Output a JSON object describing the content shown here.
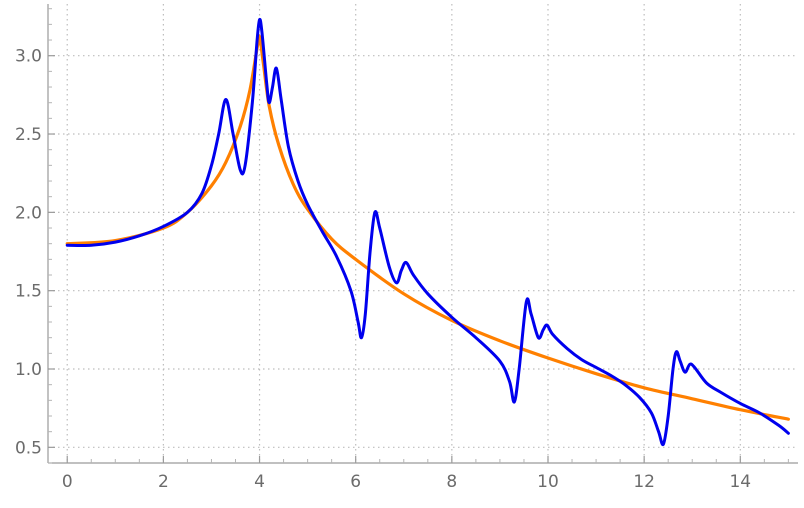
{
  "chart_data": {
    "type": "line",
    "title": "",
    "xlabel": "",
    "ylabel": "",
    "xlim": [
      -0.4,
      15.2
    ],
    "ylim": [
      0.4,
      3.33
    ],
    "x_ticks": [
      0,
      2,
      4,
      6,
      8,
      10,
      12,
      14
    ],
    "x_tick_labels": [
      "0",
      "2",
      "4",
      "6",
      "8",
      "10",
      "12",
      "14"
    ],
    "y_ticks": [
      0.5,
      1.0,
      1.5,
      2.0,
      2.5,
      3.0
    ],
    "y_tick_labels": [
      "0.5",
      "1.0",
      "1.5",
      "2.0",
      "2.5",
      "3.0"
    ],
    "grid": true,
    "legend": "none",
    "series": [
      {
        "color": "#ff8000",
        "points": [
          [
            0,
            1.8
          ],
          [
            1,
            1.82
          ],
          [
            2,
            1.9
          ],
          [
            2.5,
            2.0
          ],
          [
            3,
            2.17
          ],
          [
            3.3,
            2.32
          ],
          [
            3.6,
            2.55
          ],
          [
            3.8,
            2.78
          ],
          [
            3.95,
            3.05
          ],
          [
            4.0,
            3.12
          ],
          [
            4.08,
            2.95
          ],
          [
            4.2,
            2.68
          ],
          [
            4.4,
            2.43
          ],
          [
            4.7,
            2.18
          ],
          [
            5.0,
            2.02
          ],
          [
            5.5,
            1.83
          ],
          [
            6,
            1.7
          ],
          [
            7,
            1.48
          ],
          [
            8,
            1.31
          ],
          [
            9,
            1.18
          ],
          [
            10,
            1.07
          ],
          [
            11,
            0.97
          ],
          [
            12,
            0.88
          ],
          [
            13,
            0.81
          ],
          [
            14,
            0.74
          ],
          [
            15,
            0.68
          ]
        ]
      },
      {
        "color": "#0000ee",
        "points": [
          [
            0,
            1.79
          ],
          [
            0.5,
            1.79
          ],
          [
            1,
            1.81
          ],
          [
            1.5,
            1.85
          ],
          [
            2,
            1.91
          ],
          [
            2.5,
            2.0
          ],
          [
            2.8,
            2.12
          ],
          [
            3.0,
            2.3
          ],
          [
            3.15,
            2.5
          ],
          [
            3.3,
            2.72
          ],
          [
            3.45,
            2.5
          ],
          [
            3.6,
            2.27
          ],
          [
            3.7,
            2.3
          ],
          [
            3.85,
            2.7
          ],
          [
            3.95,
            3.1
          ],
          [
            4.0,
            3.23
          ],
          [
            4.05,
            3.15
          ],
          [
            4.15,
            2.82
          ],
          [
            4.2,
            2.7
          ],
          [
            4.27,
            2.8
          ],
          [
            4.35,
            2.92
          ],
          [
            4.45,
            2.72
          ],
          [
            4.6,
            2.42
          ],
          [
            4.8,
            2.2
          ],
          [
            5.0,
            2.05
          ],
          [
            5.3,
            1.88
          ],
          [
            5.6,
            1.72
          ],
          [
            5.9,
            1.5
          ],
          [
            6.05,
            1.3
          ],
          [
            6.12,
            1.2
          ],
          [
            6.2,
            1.35
          ],
          [
            6.3,
            1.75
          ],
          [
            6.4,
            2.0
          ],
          [
            6.5,
            1.9
          ],
          [
            6.7,
            1.65
          ],
          [
            6.85,
            1.55
          ],
          [
            6.95,
            1.63
          ],
          [
            7.05,
            1.68
          ],
          [
            7.2,
            1.6
          ],
          [
            7.5,
            1.48
          ],
          [
            8,
            1.33
          ],
          [
            8.5,
            1.2
          ],
          [
            9,
            1.05
          ],
          [
            9.2,
            0.92
          ],
          [
            9.3,
            0.79
          ],
          [
            9.4,
            1.0
          ],
          [
            9.55,
            1.43
          ],
          [
            9.65,
            1.35
          ],
          [
            9.8,
            1.2
          ],
          [
            9.9,
            1.25
          ],
          [
            9.98,
            1.28
          ],
          [
            10.1,
            1.22
          ],
          [
            10.4,
            1.13
          ],
          [
            10.7,
            1.06
          ],
          [
            11,
            1.01
          ],
          [
            11.3,
            0.96
          ],
          [
            11.6,
            0.9
          ],
          [
            11.9,
            0.82
          ],
          [
            12.15,
            0.72
          ],
          [
            12.3,
            0.6
          ],
          [
            12.4,
            0.52
          ],
          [
            12.5,
            0.7
          ],
          [
            12.6,
            1.0
          ],
          [
            12.67,
            1.11
          ],
          [
            12.75,
            1.05
          ],
          [
            12.85,
            0.98
          ],
          [
            12.95,
            1.03
          ],
          [
            13.05,
            1.01
          ],
          [
            13.3,
            0.91
          ],
          [
            13.6,
            0.85
          ],
          [
            14,
            0.78
          ],
          [
            14.4,
            0.72
          ],
          [
            14.8,
            0.64
          ],
          [
            15,
            0.59
          ]
        ]
      }
    ]
  }
}
